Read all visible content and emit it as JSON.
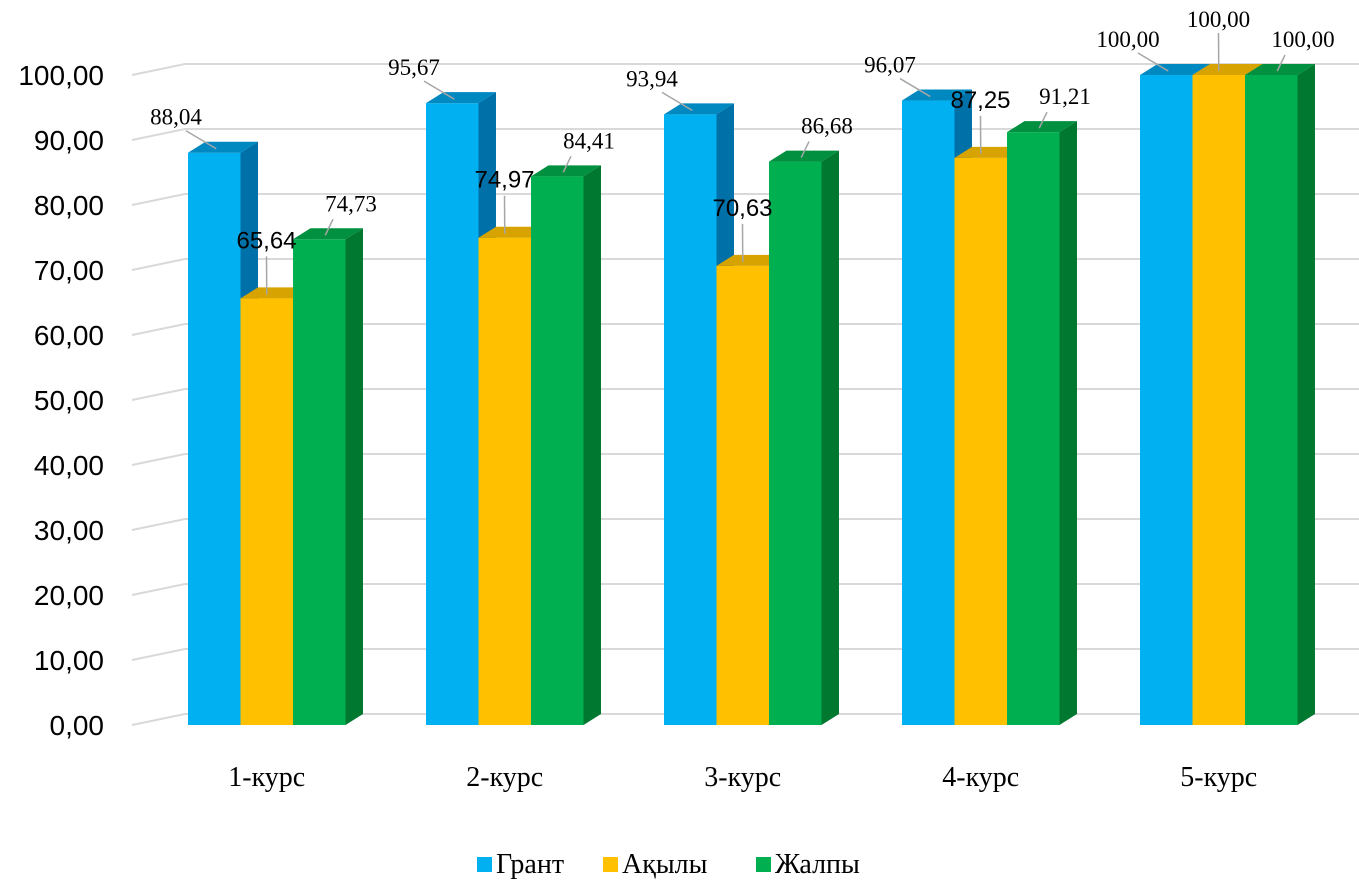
{
  "chart_data": {
    "type": "bar",
    "categories": [
      "1-курс",
      "2-курс",
      "3-курс",
      "4-курс",
      "5-курс"
    ],
    "series": [
      {
        "name": "Грант",
        "values": [
          88.04,
          95.67,
          93.94,
          96.07,
          100.0
        ],
        "labels": [
          "88,04",
          "95,67",
          "93,94",
          "96,07",
          "100,00"
        ],
        "color": "#00B0F0",
        "side_color": "#0070A8",
        "top_color": "#0088C0"
      },
      {
        "name": "Ақылы",
        "values": [
          65.64,
          74.97,
          70.63,
          87.25,
          100.0
        ],
        "labels": [
          "65,64",
          "74,97",
          "70,63",
          "87,25",
          "100,00"
        ],
        "color": "#FFC000",
        "side_color": "#C09000",
        "top_color": "#D6A300"
      },
      {
        "name": "Жалпы",
        "values": [
          74.73,
          84.41,
          86.68,
          91.21,
          100.0
        ],
        "labels": [
          "74,73",
          "84,41",
          "86,68",
          "91,21",
          "100,00"
        ],
        "color": "#00B050",
        "side_color": "#00782F",
        "top_color": "#009040"
      }
    ],
    "ylim": [
      0,
      100
    ],
    "yticks": [
      0,
      10,
      20,
      30,
      40,
      50,
      60,
      70,
      80,
      90,
      100
    ],
    "ytick_labels": [
      "0,00",
      "10,00",
      "20,00",
      "30,00",
      "40,00",
      "50,00",
      "60,00",
      "70,00",
      "80,00",
      "90,00",
      "100,00"
    ],
    "grid": true,
    "legend": "bottom",
    "three_d": true
  }
}
